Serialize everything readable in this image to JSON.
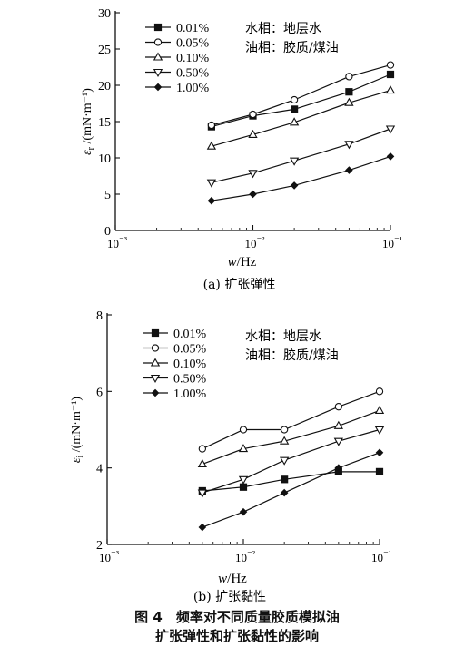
{
  "chart_data": [
    {
      "type": "line",
      "title": "",
      "caption": "(a) 扩张弹性",
      "xlabel": "w/Hz",
      "ylabel": "ε_r /(mN·m⁻¹)",
      "xscale": "log",
      "xlim": [
        0.001,
        0.1
      ],
      "xticks": [
        "10⁻³",
        "10⁻²",
        "10⁻¹"
      ],
      "ylim": [
        0,
        30
      ],
      "yticks": [
        0,
        5,
        10,
        15,
        20,
        25,
        30
      ],
      "legend_position": "top-left",
      "annotations": [
        "水相：地层水",
        "油相：胶质/煤油"
      ],
      "x": [
        0.005,
        0.01,
        0.02,
        0.05,
        0.1
      ],
      "series": [
        {
          "name": "0.01%",
          "marker": "filled-square",
          "values": [
            14.3,
            15.8,
            16.7,
            19.1,
            21.5
          ]
        },
        {
          "name": "0.05%",
          "marker": "open-circle",
          "values": [
            14.5,
            16.0,
            18.0,
            21.2,
            22.8
          ]
        },
        {
          "name": "0.10%",
          "marker": "open-triangle-up",
          "values": [
            11.6,
            13.2,
            14.9,
            17.6,
            19.3
          ]
        },
        {
          "name": "0.50%",
          "marker": "open-triangle-down",
          "values": [
            6.6,
            7.9,
            9.6,
            11.9,
            14.0
          ]
        },
        {
          "name": "1.00%",
          "marker": "diamond",
          "values": [
            4.1,
            5.0,
            6.2,
            8.3,
            10.2
          ]
        }
      ]
    },
    {
      "type": "line",
      "title": "",
      "caption": "(b) 扩张黏性",
      "xlabel": "w/Hz",
      "ylabel": "ε_i /(mN·m⁻¹)",
      "xscale": "log",
      "xlim": [
        0.001,
        0.1
      ],
      "xticks": [
        "10⁻³",
        "10⁻²",
        "10⁻¹"
      ],
      "ylim": [
        2,
        8
      ],
      "yticks": [
        2,
        4,
        6,
        8
      ],
      "legend_position": "top-left",
      "annotations": [
        "水相：地层水",
        "油相：胶质/煤油"
      ],
      "x": [
        0.005,
        0.01,
        0.02,
        0.05,
        0.1
      ],
      "series": [
        {
          "name": "0.01%",
          "marker": "filled-square",
          "values": [
            3.4,
            3.5,
            3.7,
            3.9,
            3.9
          ]
        },
        {
          "name": "0.05%",
          "marker": "open-circle",
          "values": [
            4.5,
            5.0,
            5.0,
            5.6,
            6.0
          ]
        },
        {
          "name": "0.10%",
          "marker": "open-triangle-up",
          "values": [
            4.1,
            4.5,
            4.7,
            5.1,
            5.5
          ]
        },
        {
          "name": "0.50%",
          "marker": "open-triangle-down",
          "values": [
            3.35,
            3.7,
            4.2,
            4.7,
            5.0
          ]
        },
        {
          "name": "1.00%",
          "marker": "diamond",
          "values": [
            2.45,
            2.85,
            3.35,
            4.0,
            4.4
          ]
        }
      ]
    }
  ],
  "figure_caption": {
    "line1": "图 4　频率对不同质量胶质模拟油",
    "line2": "扩张弹性和扩张黏性的影响"
  }
}
